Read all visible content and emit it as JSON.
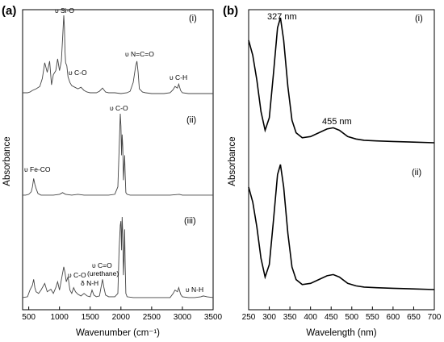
{
  "chart_data": [
    {
      "type": "line",
      "panel_label": "(a)",
      "xlabel": "Wavenumber (cm⁻¹)",
      "ylabel": "Absorbance",
      "xlim": [
        400,
        3500
      ],
      "x_ticks": [
        500,
        1000,
        1500,
        2000,
        2500,
        3000,
        3500
      ],
      "grid": false,
      "series": [
        {
          "name": "(i)",
          "x": [
            400,
            480,
            520,
            560,
            620,
            680,
            720,
            760,
            800,
            840,
            870,
            900,
            940,
            970,
            1000,
            1030,
            1050,
            1070,
            1080,
            1090,
            1100,
            1120,
            1140,
            1170,
            1200,
            1250,
            1300,
            1350,
            1400,
            1450,
            1500,
            1550,
            1600,
            1650,
            1700,
            1720,
            1750,
            1800,
            1900,
            2000,
            2100,
            2150,
            2200,
            2240,
            2260,
            2280,
            2300,
            2350,
            2400,
            2500,
            2600,
            2700,
            2800,
            2850,
            2880,
            2920,
            2940,
            2970,
            3000,
            3100,
            3200,
            3300,
            3400,
            3500
          ],
          "y": [
            0.02,
            0.02,
            0.03,
            0.05,
            0.07,
            0.1,
            0.2,
            0.4,
            0.28,
            0.42,
            0.12,
            0.25,
            0.3,
            0.45,
            0.3,
            0.42,
            0.7,
            1.0,
            0.85,
            0.55,
            0.4,
            0.36,
            0.22,
            0.15,
            0.11,
            0.09,
            0.07,
            0.09,
            0.05,
            0.03,
            0.02,
            0.02,
            0.02,
            0.04,
            0.08,
            0.06,
            0.03,
            0.02,
            0.02,
            0.01,
            0.02,
            0.04,
            0.15,
            0.36,
            0.42,
            0.28,
            0.07,
            0.03,
            0.02,
            0.01,
            0.01,
            0.01,
            0.02,
            0.06,
            0.1,
            0.08,
            0.13,
            0.05,
            0.02,
            0.01,
            0.01,
            0.01,
            0.01,
            0.01
          ]
        },
        {
          "name": "(ii)",
          "x": [
            400,
            450,
            500,
            540,
            560,
            580,
            600,
            620,
            650,
            700,
            800,
            900,
            1000,
            1050,
            1100,
            1200,
            1300,
            1400,
            1500,
            1600,
            1700,
            1800,
            1900,
            1950,
            1970,
            1990,
            2000,
            2010,
            2020,
            2030,
            2040,
            2050,
            2060,
            2070,
            2080,
            2100,
            2150,
            2200,
            2300,
            2500,
            2800,
            2950,
            3000,
            3200,
            3400,
            3500
          ],
          "y": [
            0.02,
            0.02,
            0.03,
            0.06,
            0.12,
            0.22,
            0.15,
            0.1,
            0.04,
            0.02,
            0.02,
            0.02,
            0.03,
            0.05,
            0.03,
            0.02,
            0.03,
            0.02,
            0.02,
            0.02,
            0.02,
            0.02,
            0.03,
            0.12,
            0.55,
            1.0,
            0.85,
            0.5,
            0.75,
            0.6,
            0.2,
            0.35,
            0.5,
            0.25,
            0.05,
            0.03,
            0.02,
            0.02,
            0.02,
            0.02,
            0.02,
            0.03,
            0.02,
            0.02,
            0.02,
            0.02
          ]
        },
        {
          "name": "(iii)",
          "x": [
            400,
            480,
            520,
            560,
            580,
            600,
            620,
            660,
            700,
            760,
            800,
            860,
            900,
            940,
            970,
            1000,
            1040,
            1070,
            1090,
            1110,
            1140,
            1170,
            1200,
            1230,
            1260,
            1300,
            1350,
            1400,
            1450,
            1500,
            1530,
            1560,
            1600,
            1650,
            1700,
            1720,
            1750,
            1800,
            1900,
            1950,
            1970,
            1990,
            2000,
            2010,
            2020,
            2030,
            2040,
            2050,
            2060,
            2070,
            2080,
            2100,
            2200,
            2300,
            2500,
            2800,
            2850,
            2880,
            2920,
            2940,
            2970,
            3000,
            3100,
            3200,
            3300,
            3340,
            3400,
            3500
          ],
          "y": [
            0.03,
            0.04,
            0.12,
            0.18,
            0.25,
            0.15,
            0.1,
            0.08,
            0.12,
            0.2,
            0.1,
            0.13,
            0.08,
            0.15,
            0.22,
            0.12,
            0.28,
            0.4,
            0.33,
            0.22,
            0.28,
            0.12,
            0.08,
            0.15,
            0.1,
            0.07,
            0.05,
            0.08,
            0.05,
            0.04,
            0.12,
            0.06,
            0.04,
            0.05,
            0.25,
            0.16,
            0.06,
            0.04,
            0.04,
            0.08,
            0.6,
            0.9,
            0.95,
            0.6,
            1.0,
            0.8,
            0.3,
            0.5,
            0.85,
            0.4,
            0.08,
            0.04,
            0.03,
            0.03,
            0.03,
            0.03,
            0.08,
            0.12,
            0.1,
            0.15,
            0.07,
            0.04,
            0.03,
            0.03,
            0.04,
            0.05,
            0.04,
            0.03
          ]
        }
      ],
      "annotations": {
        "si_o": "υ Si-O",
        "c_o_i": "υ C-O",
        "ncn": "υ N=C=O",
        "c_h": "υ C-H",
        "c_o_ii": "υ C-O",
        "fe_co": "υ Fe-CO",
        "c_o_iii": "υ C-O",
        "c_eq_o": "υ C=O",
        "urethane": "(urethane)",
        "n_h_bend": "δ N-H",
        "n_h": "υ N-H"
      }
    },
    {
      "type": "line",
      "panel_label": "(b)",
      "xlabel": "Wavelength (nm)",
      "ylabel": "Absorbance",
      "xlim": [
        250,
        700
      ],
      "x_ticks": [
        250,
        300,
        350,
        400,
        450,
        500,
        550,
        600,
        650,
        700
      ],
      "grid": false,
      "series": [
        {
          "name": "(i)",
          "x": [
            250,
            260,
            270,
            280,
            290,
            300,
            310,
            320,
            327,
            335,
            345,
            355,
            365,
            380,
            400,
            420,
            440,
            455,
            470,
            490,
            510,
            530,
            560,
            600,
            650,
            700
          ],
          "y": [
            0.82,
            0.7,
            0.5,
            0.25,
            0.1,
            0.2,
            0.55,
            0.92,
            1.0,
            0.82,
            0.45,
            0.18,
            0.08,
            0.04,
            0.05,
            0.08,
            0.11,
            0.12,
            0.1,
            0.05,
            0.03,
            0.02,
            0.015,
            0.01,
            0.005,
            0.0
          ]
        },
        {
          "name": "(ii)",
          "x": [
            250,
            260,
            270,
            280,
            290,
            300,
            310,
            320,
            327,
            335,
            345,
            355,
            365,
            380,
            400,
            420,
            440,
            455,
            470,
            490,
            510,
            530,
            560,
            600,
            650,
            700
          ],
          "y": [
            0.82,
            0.7,
            0.5,
            0.25,
            0.1,
            0.2,
            0.55,
            0.92,
            1.0,
            0.82,
            0.45,
            0.18,
            0.08,
            0.04,
            0.05,
            0.08,
            0.11,
            0.12,
            0.1,
            0.05,
            0.03,
            0.02,
            0.015,
            0.01,
            0.005,
            0.0
          ]
        }
      ],
      "annotations": {
        "peak1": "327 nm",
        "peak2": "455 nm"
      }
    }
  ]
}
